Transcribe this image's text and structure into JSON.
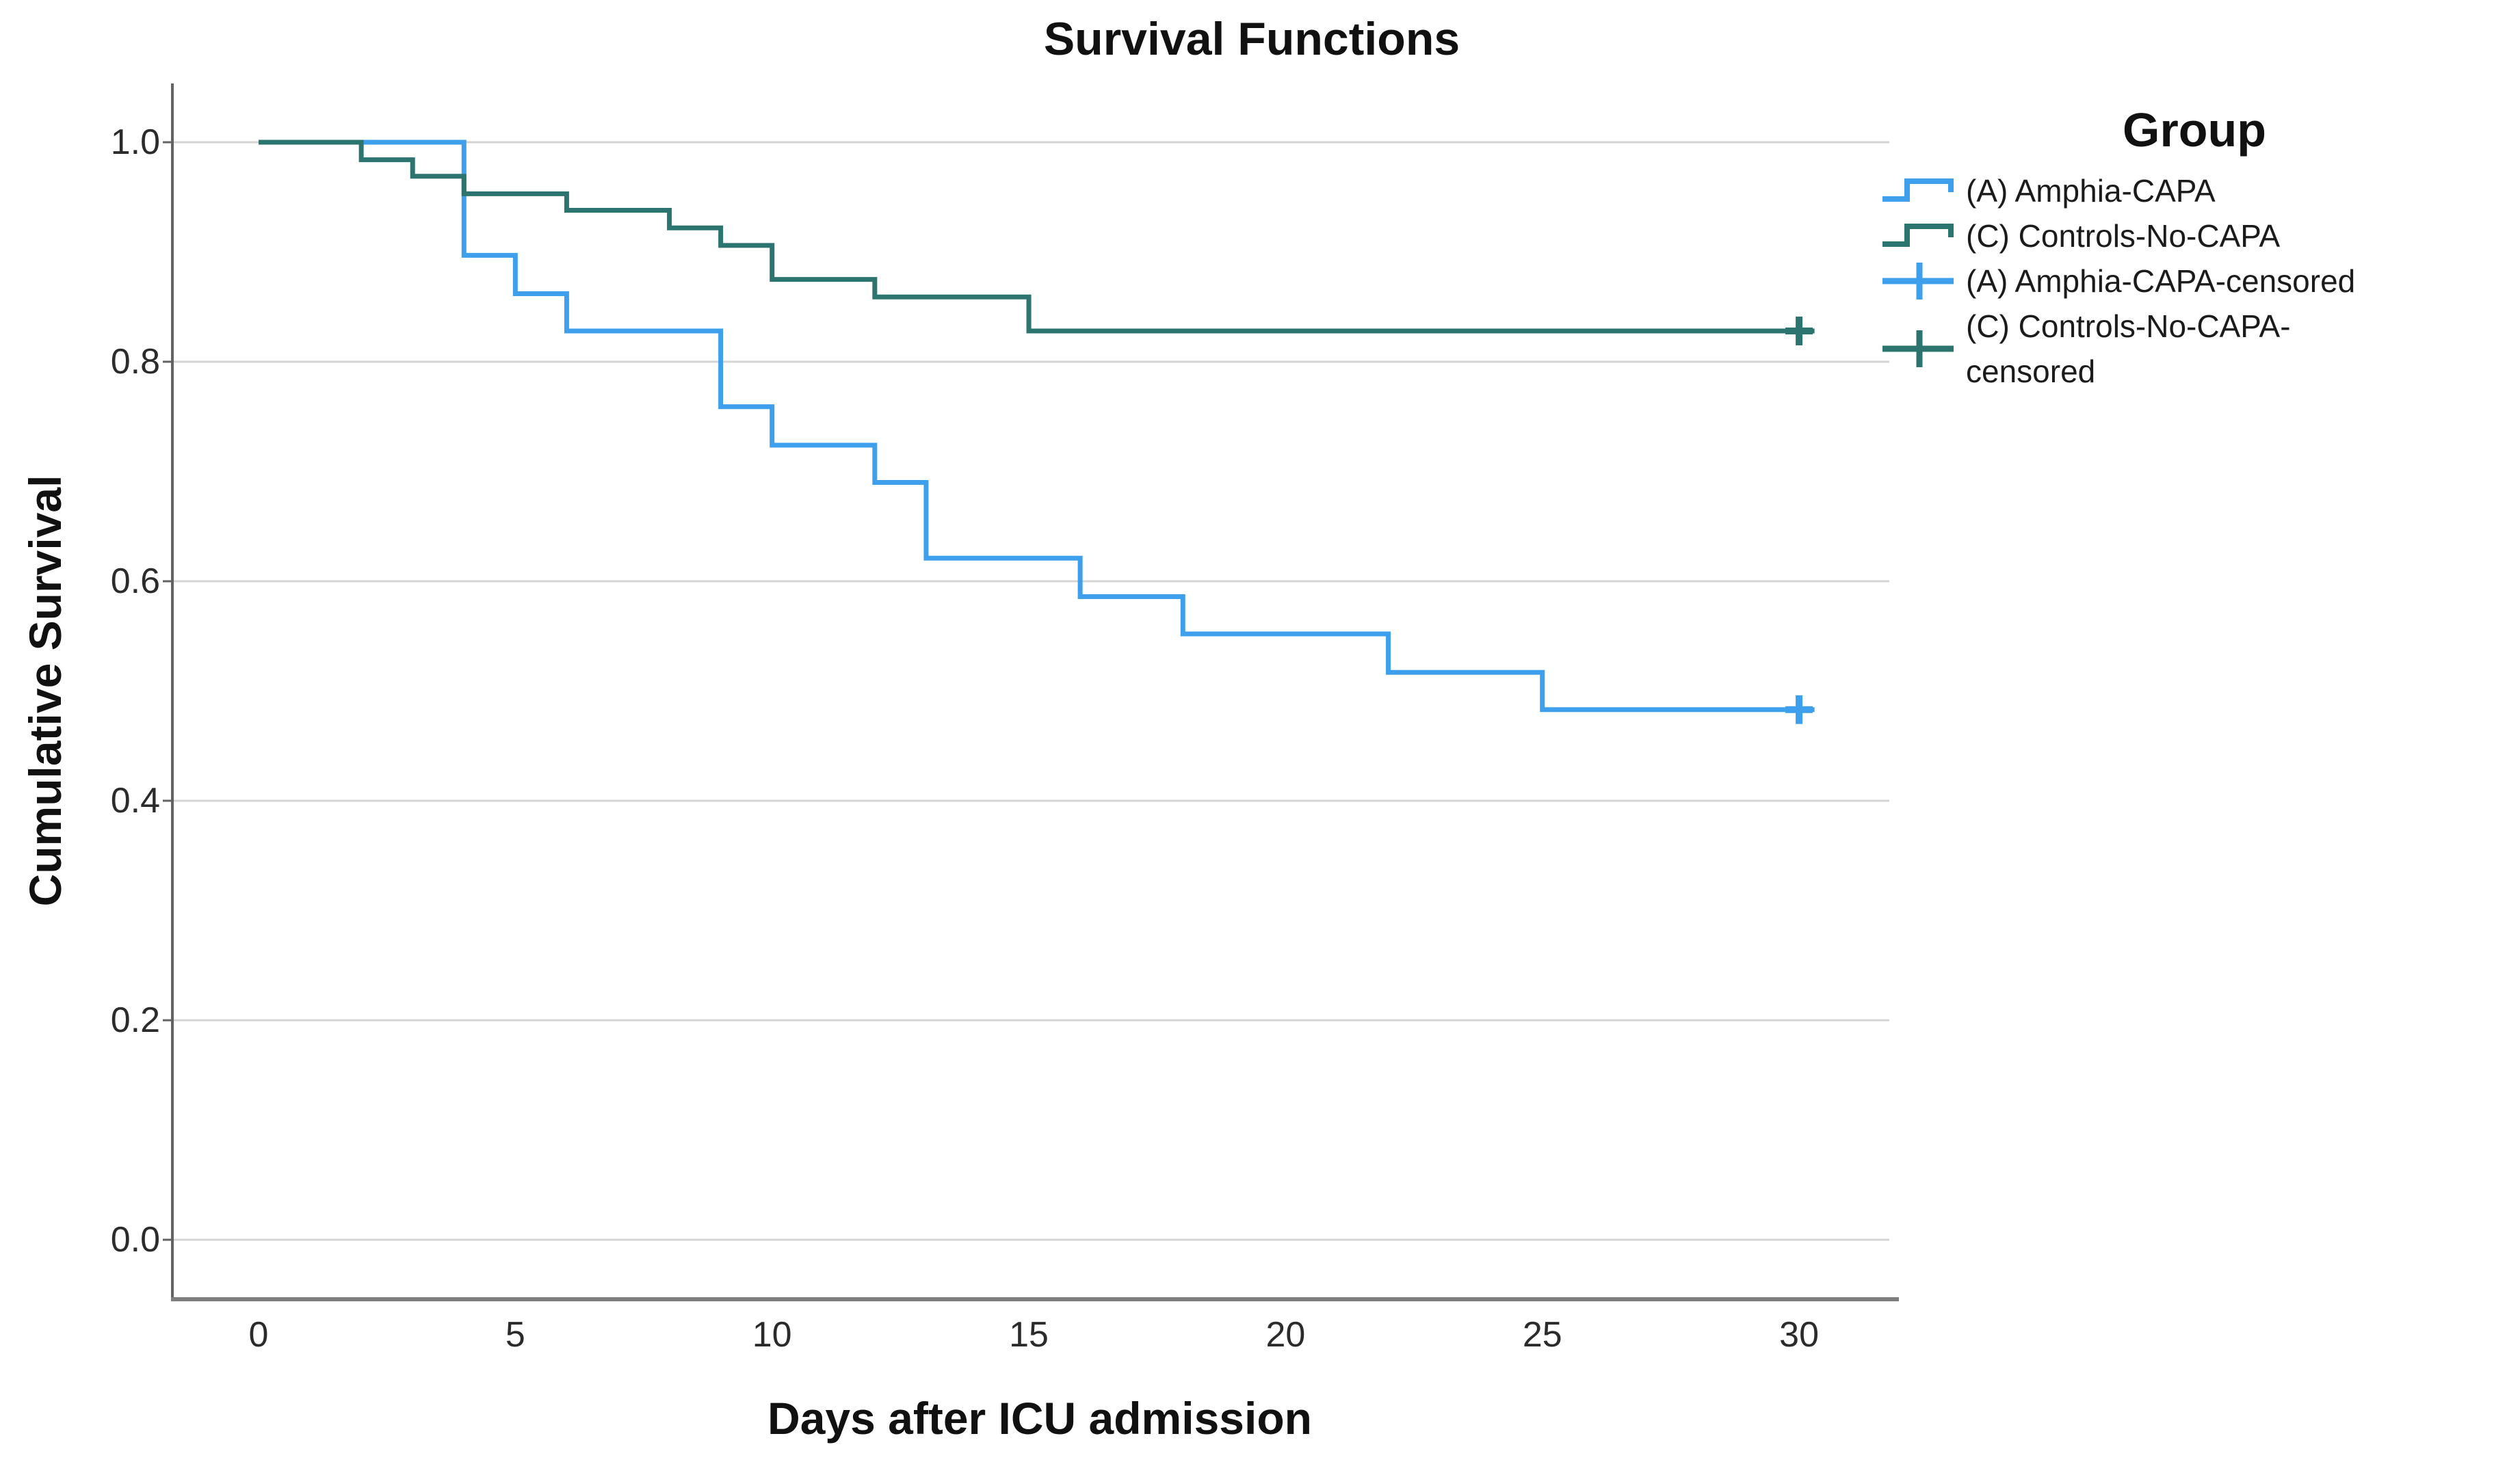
{
  "figure_title": "Survival Functions",
  "axes": {
    "x_title": "Days after ICU admission",
    "y_title": "Cumulative Survival"
  },
  "legend": {
    "title": "Group",
    "entries": [
      {
        "label": "(A) Amphia-CAPA",
        "symbol": "step-line",
        "color": "#3E9FED"
      },
      {
        "label": "(C) Controls-No-CAPA",
        "symbol": "step-line",
        "color": "#2C7470"
      },
      {
        "label": "(A) Amphia-CAPA-censored",
        "symbol": "plus-marker",
        "color": "#3E9FED"
      },
      {
        "label": "(C) Controls-No-CAPA-censored",
        "symbol": "plus-marker",
        "color": "#2C7470"
      }
    ]
  },
  "chart_data": {
    "type": "line",
    "subtype": "kaplan-meier-step",
    "title": "Survival Functions",
    "xlabel": "Days after ICU admission",
    "ylabel": "Cumulative Survival",
    "xlim": [
      -1.7,
      31.8
    ],
    "ylim": [
      -0.054,
      1.054
    ],
    "x_ticks": [
      0,
      5,
      10,
      15,
      20,
      25,
      30
    ],
    "y_tick_labels": [
      "1.0",
      "0.8",
      "0.6",
      "0.4",
      "0.2",
      "0.0"
    ],
    "grid": "horizontal",
    "legend_position": "right",
    "colors": {
      "amphia_capa": "#3E9FED",
      "controls_no_capa": "#2C7470",
      "gridline": "#D4D4D4",
      "y_axis_line": "#636363",
      "x_axis_line": "#7E7E7E"
    },
    "series": [
      {
        "name": "(A) Amphia-CAPA",
        "color": "#3E9FED",
        "steps": [
          [
            0,
            1.0
          ],
          [
            4,
            0.897
          ],
          [
            5,
            0.862
          ],
          [
            6,
            0.828
          ],
          [
            9,
            0.759
          ],
          [
            10,
            0.724
          ],
          [
            12,
            0.69
          ],
          [
            13,
            0.621
          ],
          [
            16,
            0.586
          ],
          [
            18,
            0.552
          ],
          [
            22,
            0.517
          ],
          [
            25,
            0.483
          ]
        ],
        "end_x": 30.3,
        "censored": [
          [
            30,
            0.483
          ]
        ]
      },
      {
        "name": "(C) Controls-No-CAPA",
        "color": "#2C7470",
        "steps": [
          [
            0,
            1.0
          ],
          [
            2,
            0.984
          ],
          [
            3,
            0.969
          ],
          [
            4,
            0.953
          ],
          [
            6,
            0.938
          ],
          [
            8,
            0.922
          ],
          [
            9,
            0.906
          ],
          [
            10,
            0.875
          ],
          [
            12,
            0.859
          ],
          [
            15,
            0.828
          ]
        ],
        "end_x": 30.3,
        "censored": [
          [
            30,
            0.828
          ]
        ]
      }
    ]
  }
}
